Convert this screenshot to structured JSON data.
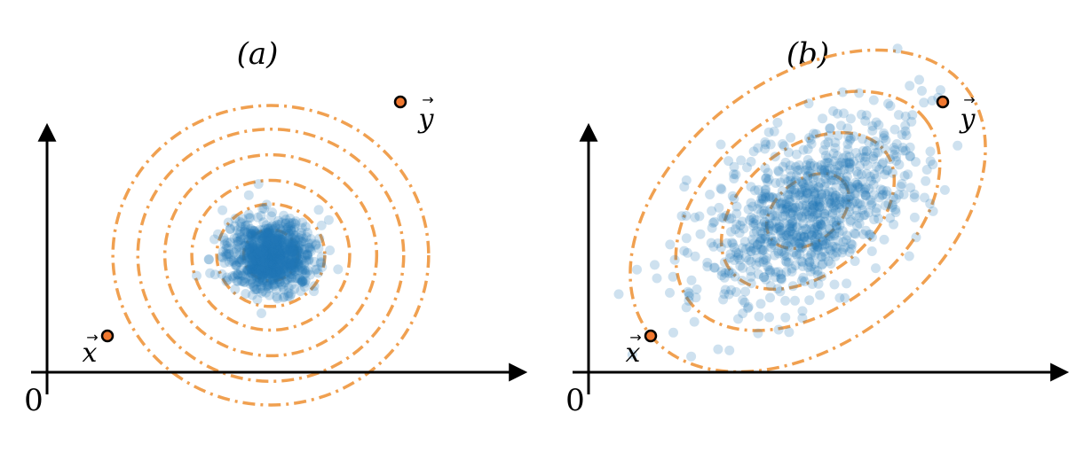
{
  "colors": {
    "points": "#1f77b4",
    "contours": "#f0a050",
    "marker_fill": "#f07830",
    "axis": "#000000"
  },
  "panels": [
    {
      "id": "a",
      "title": "(a)",
      "origin_label": "0",
      "x_label": "x",
      "y_label": "y",
      "distribution": "isotropic",
      "contour_count": 6
    },
    {
      "id": "b",
      "title": "(b)",
      "origin_label": "0",
      "x_label": "x",
      "y_label": "y",
      "distribution": "correlated",
      "contour_count": 4
    }
  ]
}
